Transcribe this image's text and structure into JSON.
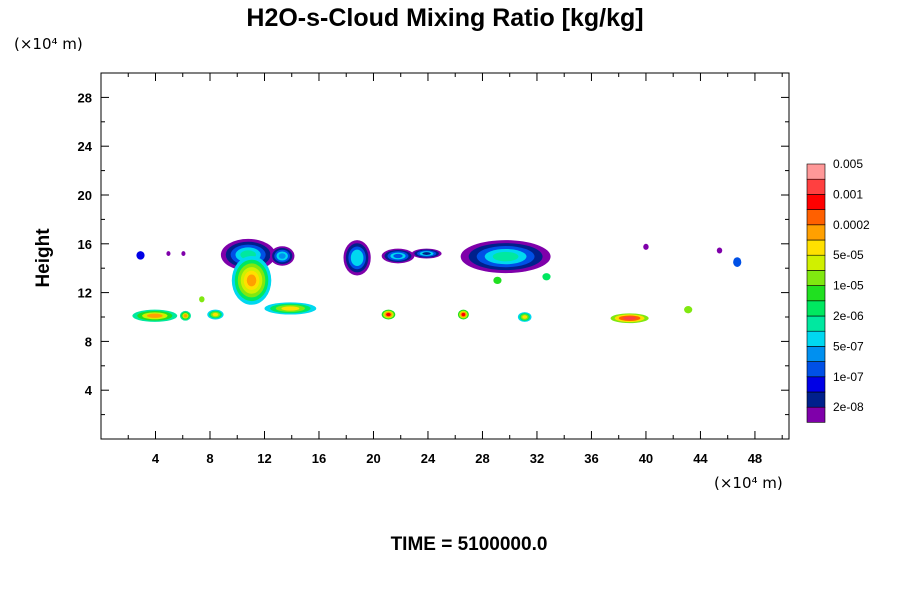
{
  "chart_data": {
    "type": "heatmap",
    "title": "H2O-s-Cloud Mixing Ratio [kg/kg]",
    "ylabel": "Height",
    "xlabel": "",
    "x_unit": "(×10⁴ m)",
    "y_unit": "(×10⁴ m)",
    "footer": "TIME = 5100000.0",
    "xlim": [
      0,
      50.5
    ],
    "ylim": [
      0,
      30
    ],
    "x_ticks": [
      4,
      8,
      12,
      16,
      20,
      24,
      28,
      32,
      36,
      40,
      44,
      48
    ],
    "y_ticks": [
      4,
      8,
      12,
      16,
      20,
      24,
      28
    ],
    "grid": false,
    "colorbar": {
      "position": "right",
      "colors": [
        "#7f00aa",
        "#00208c",
        "#0000e6",
        "#0050e6",
        "#0090f0",
        "#00d8f0",
        "#00e8a0",
        "#00e860",
        "#20e020",
        "#80e810",
        "#d0f000",
        "#ffe000",
        "#ffa000",
        "#ff6000",
        "#ff0000",
        "#ff4040",
        "#ff9898"
      ],
      "labels": [
        "2e-08",
        "1e-07",
        "5e-07",
        "2e-06",
        "1e-05",
        "5e-05",
        "0.0002",
        "0.001",
        "0.005"
      ]
    },
    "features": [
      {
        "kind": "anvil",
        "x": [
          8.8,
          12.8
        ],
        "y": [
          13.8,
          16.4
        ],
        "level": 6
      },
      {
        "kind": "core",
        "x": [
          9.6,
          12.5
        ],
        "y": [
          11.0,
          15.0
        ],
        "level": 11
      },
      {
        "kind": "anvil",
        "x": [
          12.4,
          14.2
        ],
        "y": [
          14.2,
          15.8
        ],
        "level": 4
      },
      {
        "kind": "anvil",
        "x": [
          17.8,
          19.8
        ],
        "y": [
          13.4,
          16.3
        ],
        "level": 5
      },
      {
        "kind": "anvil",
        "x": [
          20.6,
          23.0
        ],
        "y": [
          14.4,
          15.6
        ],
        "level": 3
      },
      {
        "kind": "anvil",
        "x": [
          22.8,
          25.0
        ],
        "y": [
          14.8,
          15.6
        ],
        "level": 1
      },
      {
        "kind": "anvil",
        "x": [
          26.4,
          33.0
        ],
        "y": [
          13.6,
          16.3
        ],
        "level": 6
      },
      {
        "kind": "cell",
        "x": [
          46.4,
          47.0
        ],
        "y": [
          14.1,
          14.9
        ],
        "level": 3
      },
      {
        "kind": "low",
        "x": [
          2.3,
          5.6
        ],
        "y": [
          9.6,
          10.6
        ],
        "level": 10
      },
      {
        "kind": "low",
        "x": [
          5.8,
          6.6
        ],
        "y": [
          9.7,
          10.5
        ],
        "level": 10
      },
      {
        "kind": "low",
        "x": [
          7.8,
          9.0
        ],
        "y": [
          9.8,
          10.6
        ],
        "level": 9
      },
      {
        "kind": "low",
        "x": [
          12.0,
          15.8
        ],
        "y": [
          10.2,
          11.2
        ],
        "level": 9
      },
      {
        "kind": "low",
        "x": [
          20.6,
          21.6
        ],
        "y": [
          9.8,
          10.6
        ],
        "level": 12
      },
      {
        "kind": "low",
        "x": [
          26.2,
          27.0
        ],
        "y": [
          9.8,
          10.6
        ],
        "level": 12
      },
      {
        "kind": "low",
        "x": [
          30.6,
          31.6
        ],
        "y": [
          9.6,
          10.4
        ],
        "level": 9
      },
      {
        "kind": "low",
        "x": [
          37.4,
          40.2
        ],
        "y": [
          9.5,
          10.3
        ],
        "level": 13
      },
      {
        "kind": "cell",
        "x": [
          42.8,
          43.4
        ],
        "y": [
          10.3,
          10.9
        ],
        "level": 9
      },
      {
        "kind": "cell",
        "x": [
          2.6,
          3.2
        ],
        "y": [
          14.7,
          15.4
        ],
        "level": 2
      },
      {
        "kind": "cell",
        "x": [
          28.8,
          29.4
        ],
        "y": [
          12.7,
          13.3
        ],
        "level": 8
      },
      {
        "kind": "cell",
        "x": [
          32.4,
          33.0
        ],
        "y": [
          13.0,
          13.6
        ],
        "level": 7
      },
      {
        "kind": "cell",
        "x": [
          7.2,
          7.6
        ],
        "y": [
          11.2,
          11.7
        ],
        "level": 9
      },
      {
        "kind": "cell",
        "x": [
          39.8,
          40.2
        ],
        "y": [
          15.5,
          16.0
        ],
        "level": 0
      },
      {
        "kind": "cell",
        "x": [
          45.2,
          45.6
        ],
        "y": [
          15.2,
          15.7
        ],
        "level": 0
      },
      {
        "kind": "cell",
        "x": [
          4.8,
          5.1
        ],
        "y": [
          15.0,
          15.4
        ],
        "level": 0
      },
      {
        "kind": "cell",
        "x": [
          5.9,
          6.2
        ],
        "y": [
          15.0,
          15.4
        ],
        "level": 0
      }
    ]
  }
}
